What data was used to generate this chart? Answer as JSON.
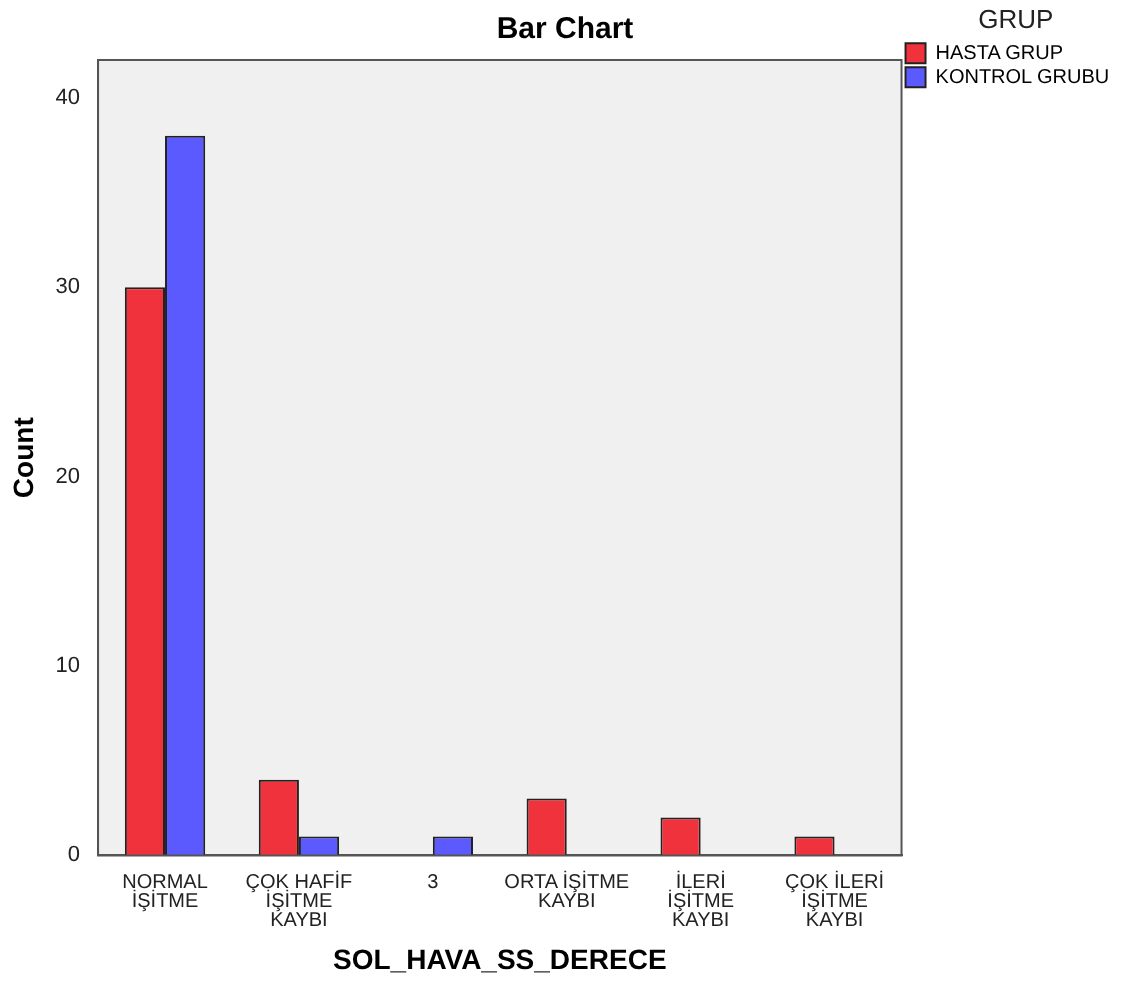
{
  "chart_data": {
    "type": "bar",
    "title": "Bar Chart",
    "xlabel": "SOL_HAVA_SS_DERECE",
    "ylabel": "Count",
    "legend_title": "GRUP",
    "legend": "right",
    "categories": [
      "NORMAL İŞİTME",
      "ÇOK HAFİF İŞİTME KAYBI",
      "3",
      "ORTA İŞİTME KAYBI",
      "İLERİ İŞİTME KAYBI",
      "ÇOK İLERİ İŞİTME KAYBI"
    ],
    "series": [
      {
        "name": "HASTA GRUP",
        "color": "#f0323c",
        "values": [
          30,
          4,
          null,
          3,
          2,
          1
        ]
      },
      {
        "name": "KONTROL GRUBU",
        "color": "#5a5aff",
        "values": [
          38,
          1,
          1,
          null,
          null,
          null
        ]
      }
    ],
    "ylim": [
      0,
      42
    ],
    "yticks": [
      0,
      10,
      20,
      30,
      40
    ],
    "grid": false
  }
}
